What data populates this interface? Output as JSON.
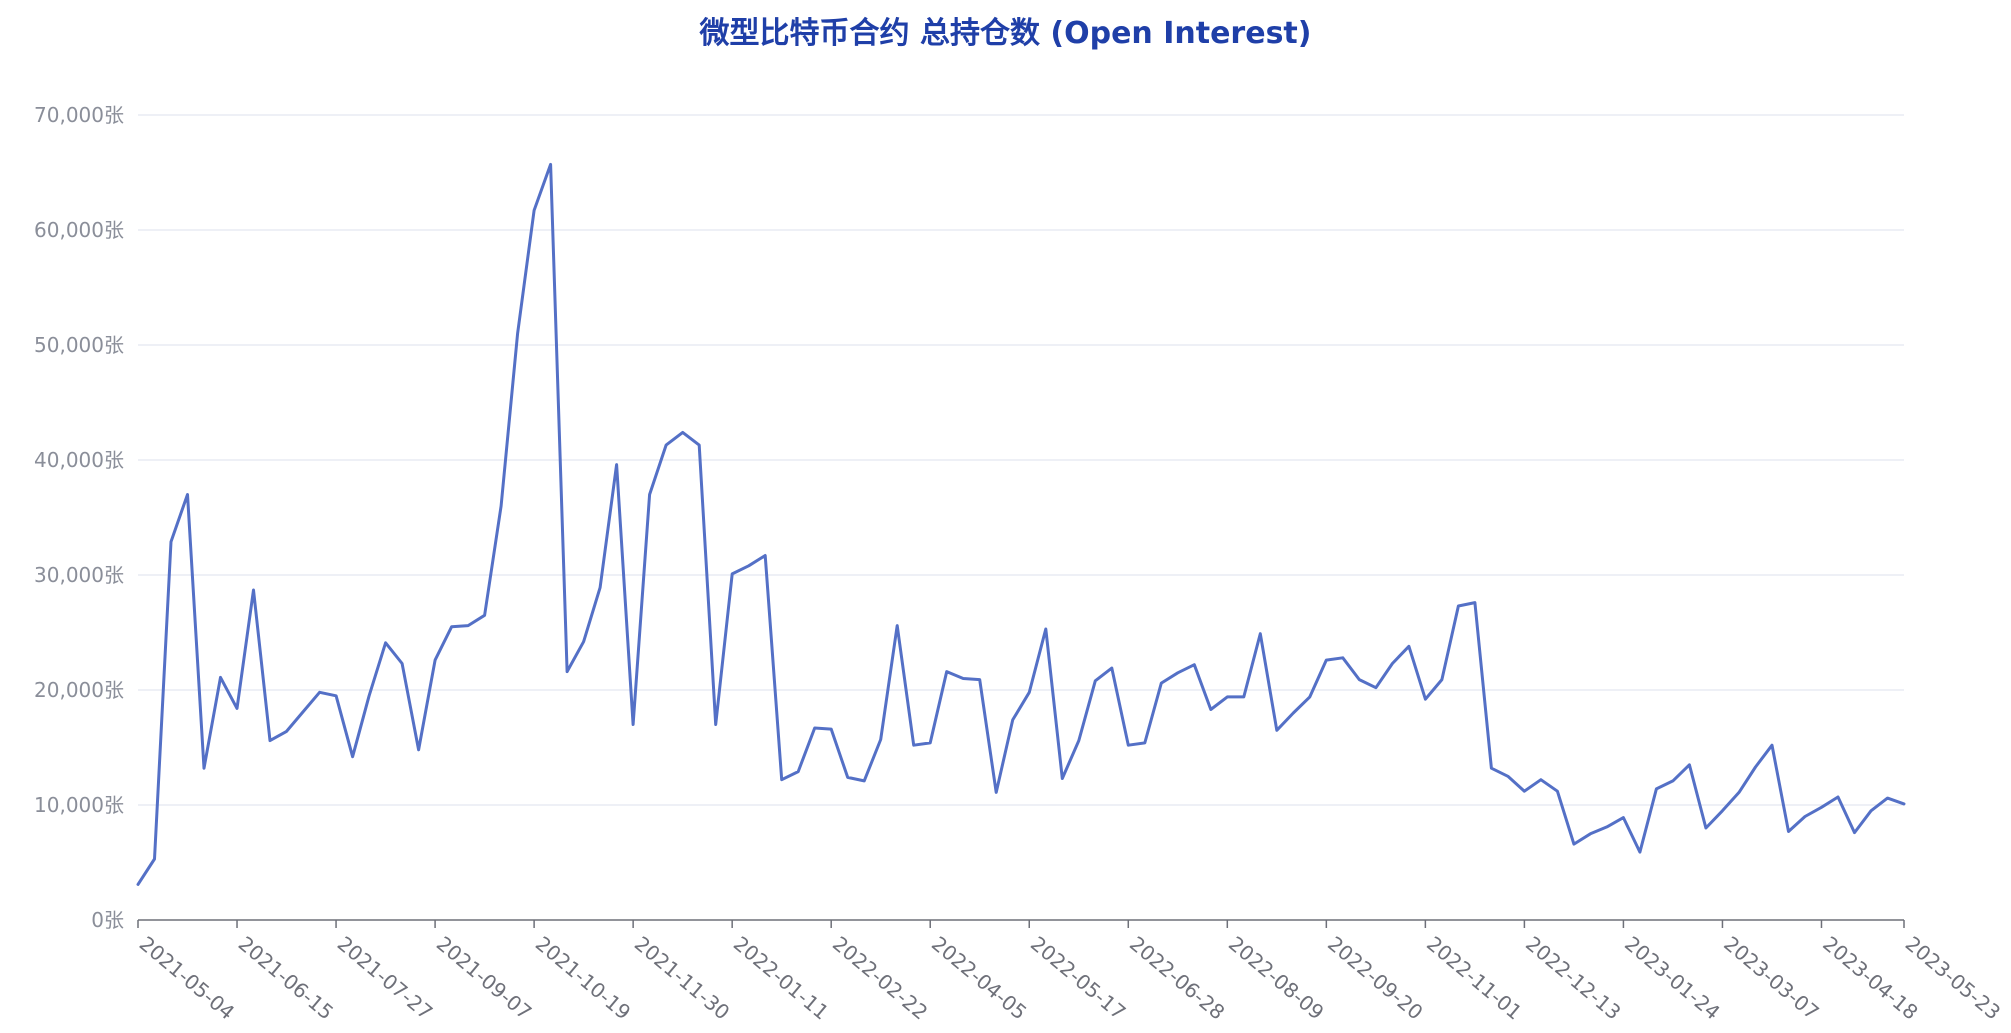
{
  "chart_data": {
    "type": "line",
    "title": "微型比特币合约 总持仓数 (Open Interest)",
    "xlabel": "",
    "ylabel": "",
    "y_unit": "张",
    "ylim": [
      0,
      70000
    ],
    "y_ticks": [
      0,
      10000,
      20000,
      30000,
      40000,
      50000,
      60000,
      70000
    ],
    "y_tick_labels": [
      "0张",
      "10,000张",
      "20,000张",
      "30,000张",
      "40,000张",
      "50,000张",
      "60,000张",
      "70,000张"
    ],
    "x_tick_labels": [
      "2021-05-04",
      "2021-06-15",
      "2021-07-27",
      "2021-09-07",
      "2021-10-19",
      "2021-11-30",
      "2022-01-11",
      "2022-02-22",
      "2022-04-05",
      "2022-05-17",
      "2022-06-28",
      "2022-08-09",
      "2022-09-20",
      "2022-11-01",
      "2022-12-13",
      "2023-01-24",
      "2023-03-07",
      "2023-04-18",
      "2023-05-23"
    ],
    "grid": true,
    "legend": "none",
    "colors": {
      "series": "#5470C6",
      "title": "#1F3FA8",
      "grid": "#E3E6F0",
      "axis": "#6E7079"
    },
    "series": [
      {
        "x": [
          "2021-05-04",
          "2021-05-11",
          "2021-05-18",
          "2021-05-25",
          "2021-06-01",
          "2021-06-08",
          "2021-06-15",
          "2021-06-22",
          "2021-06-29",
          "2021-07-06",
          "2021-07-13",
          "2021-07-20",
          "2021-07-27",
          "2021-08-03",
          "2021-08-10",
          "2021-08-17",
          "2021-08-24",
          "2021-08-31",
          "2021-09-07",
          "2021-09-14",
          "2021-09-21",
          "2021-09-28",
          "2021-10-05",
          "2021-10-12",
          "2021-10-19",
          "2021-10-26",
          "2021-11-02",
          "2021-11-09",
          "2021-11-16",
          "2021-11-23",
          "2021-11-30",
          "2021-12-07",
          "2021-12-14",
          "2021-12-21",
          "2021-12-28",
          "2022-01-04",
          "2022-01-11",
          "2022-01-18",
          "2022-01-25",
          "2022-02-01",
          "2022-02-08",
          "2022-02-15",
          "2022-02-22",
          "2022-03-01",
          "2022-03-08",
          "2022-03-15",
          "2022-03-22",
          "2022-03-29",
          "2022-04-05",
          "2022-04-12",
          "2022-04-19",
          "2022-04-26",
          "2022-05-03",
          "2022-05-10",
          "2022-05-17",
          "2022-05-24",
          "2022-05-31",
          "2022-06-07",
          "2022-06-14",
          "2022-06-21",
          "2022-06-28",
          "2022-07-05",
          "2022-07-12",
          "2022-07-19",
          "2022-07-26",
          "2022-08-02",
          "2022-08-09",
          "2022-08-16",
          "2022-08-23",
          "2022-08-30",
          "2022-09-06",
          "2022-09-13",
          "2022-09-20",
          "2022-09-27",
          "2022-10-04",
          "2022-10-11",
          "2022-10-18",
          "2022-10-25",
          "2022-11-01",
          "2022-11-08",
          "2022-11-15",
          "2022-11-22",
          "2022-11-29",
          "2022-12-06",
          "2022-12-13",
          "2022-12-20",
          "2022-12-27",
          "2023-01-03",
          "2023-01-10",
          "2023-01-17",
          "2023-01-24",
          "2023-01-31",
          "2023-02-07",
          "2023-02-14",
          "2023-02-21",
          "2023-02-28",
          "2023-03-07",
          "2023-03-14",
          "2023-03-21",
          "2023-03-28",
          "2023-04-04",
          "2023-04-11",
          "2023-04-18",
          "2023-04-25",
          "2023-05-02",
          "2023-05-09",
          "2023-05-16",
          "2023-05-23"
        ],
        "values": [
          3100,
          5300,
          32900,
          37000,
          13200,
          21100,
          18400,
          28700,
          15600,
          16400,
          18100,
          19800,
          19500,
          14200,
          19500,
          24100,
          22300,
          14800,
          22600,
          25500,
          25600,
          26500,
          36000,
          51000,
          61700,
          65700,
          21600,
          24200,
          28900,
          39600,
          17000,
          37000,
          41300,
          42400,
          41300,
          17000,
          30100,
          30800,
          31700,
          12200,
          12900,
          16700,
          16600,
          12400,
          12100,
          15700,
          25600,
          15200,
          15400,
          21600,
          21000,
          20900,
          11100,
          17400,
          19800,
          25300,
          12300,
          15600,
          20800,
          21900,
          15200,
          15400,
          20600,
          21500,
          22200,
          18300,
          19400,
          19400,
          24900,
          16500,
          18000,
          19400,
          22600,
          22800,
          20900,
          20200,
          22300,
          23800,
          19200,
          20900,
          27300,
          27600,
          13200,
          12500,
          11200,
          12200,
          11200,
          6600,
          7500,
          8100,
          8900,
          5900,
          11400,
          12100,
          13500,
          8000,
          9500,
          11100,
          13300,
          15200,
          7700,
          9000,
          9800,
          10700,
          7600,
          9500,
          10600,
          10100
        ]
      }
    ]
  }
}
